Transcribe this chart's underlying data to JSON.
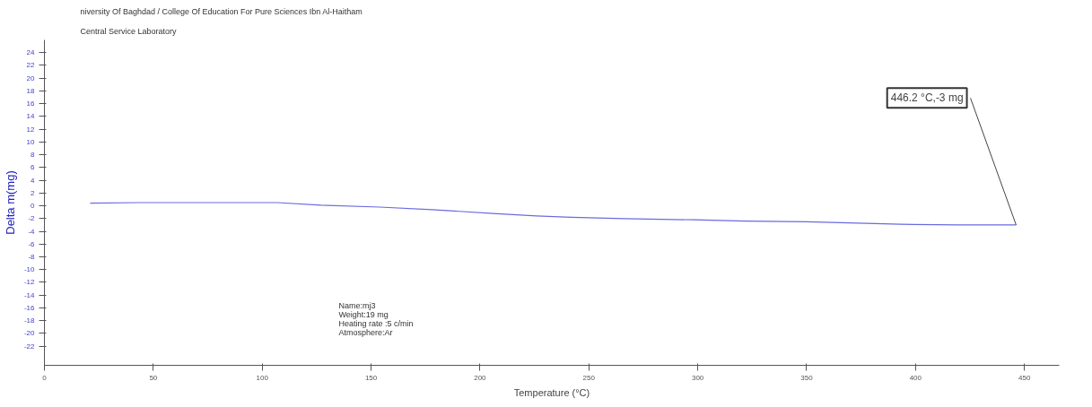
{
  "chart_data": {
    "type": "line",
    "title": "niversity Of Baghdad / College Of Education For Pure Sciences Ibn Al-Haitham",
    "subtitle": "Central Service Laboratory",
    "xlabel": "Temperature (°C)",
    "ylabel": "Delta m(mg)",
    "x": [
      21,
      43,
      80,
      107,
      127,
      154,
      178,
      206,
      226,
      242,
      266,
      298,
      322,
      350,
      393,
      420,
      446.2
    ],
    "series": [
      {
        "color": "#6a6ae0",
        "values": [
          0.4,
          0.5,
          0.5,
          0.5,
          0.1,
          -0.2,
          -0.6,
          -1.2,
          -1.6,
          -1.8,
          -2.0,
          -2.2,
          -2.4,
          -2.5,
          -2.9,
          -3.0,
          -3.0
        ]
      }
    ],
    "xlim": [
      0,
      466
    ],
    "ylim": [
      -25,
      26
    ],
    "xticks": [
      0,
      50,
      100,
      150,
      200,
      250,
      300,
      350,
      400,
      450
    ],
    "yticks": [
      -22,
      -20,
      -18,
      -16,
      -14,
      -12,
      -10,
      -8,
      -6,
      -4,
      -2,
      0,
      2,
      4,
      6,
      8,
      10,
      12,
      14,
      16,
      18,
      20,
      22,
      24
    ],
    "grid": false,
    "marker": "none",
    "line_style": "solid",
    "annotations": [
      {
        "text": "446.2 °C,-3 mg",
        "x": 446.2,
        "y": -3
      },
      "Name:mj3",
      "Weight:19 mg",
      "Heating rate :5 c/min",
      "Atmosphere:Ar"
    ]
  }
}
